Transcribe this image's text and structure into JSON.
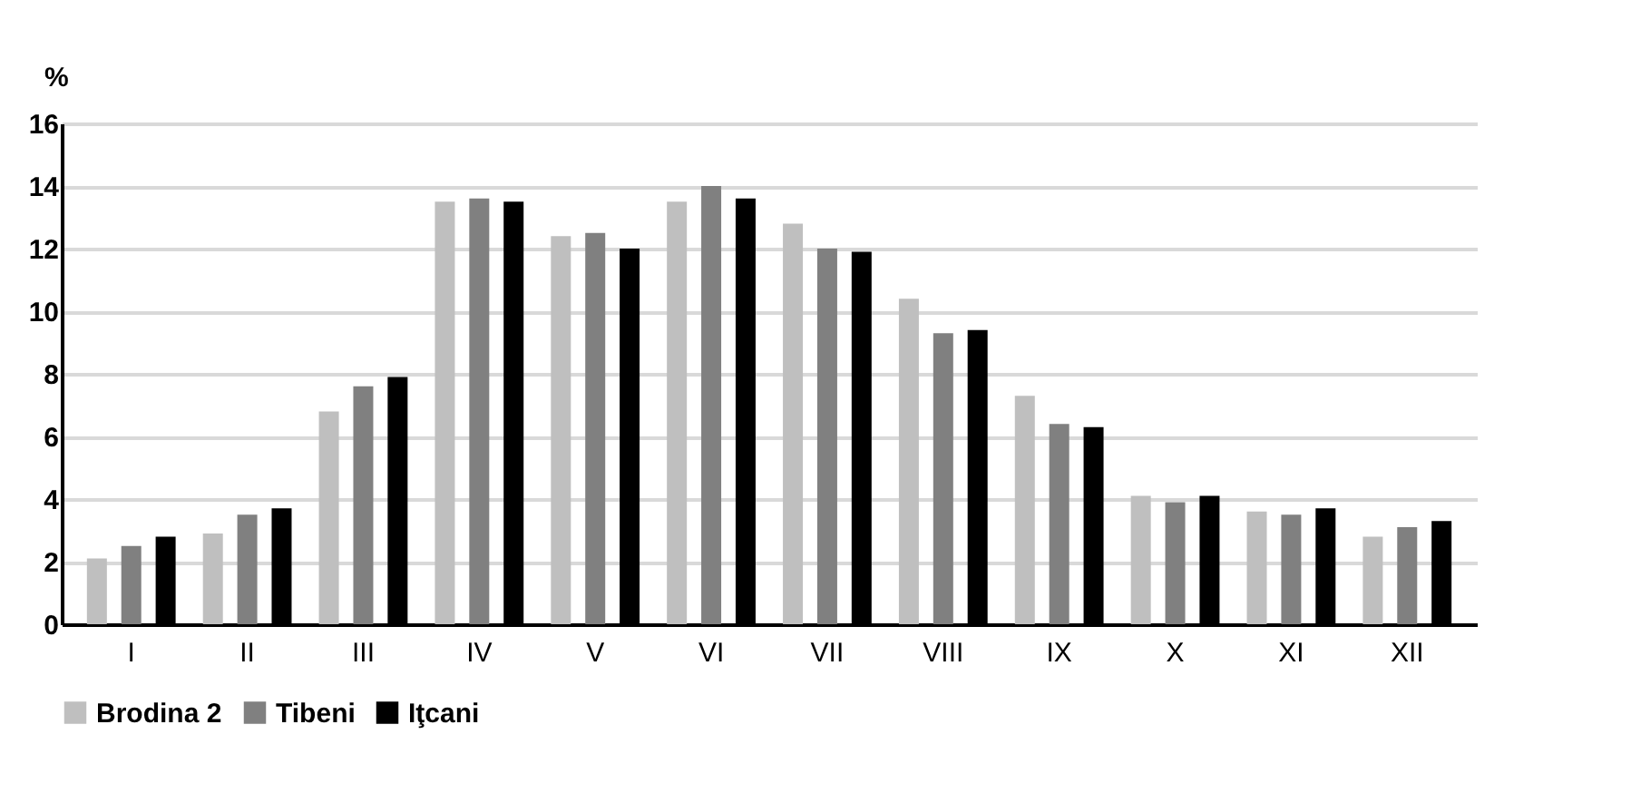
{
  "chart_data": {
    "type": "bar",
    "ylabel": "%",
    "categories": [
      "I",
      "II",
      "III",
      "IV",
      "V",
      "VI",
      "VII",
      "VIII",
      "IX",
      "X",
      "XI",
      "XII"
    ],
    "series": [
      {
        "name": "Brodina 2",
        "color": "#bfbfbf",
        "values": [
          2.1,
          2.9,
          6.8,
          13.5,
          12.4,
          13.5,
          12.8,
          10.4,
          7.3,
          4.1,
          3.6,
          2.8
        ]
      },
      {
        "name": "Tibeni",
        "color": "#808080",
        "values": [
          2.5,
          3.5,
          7.6,
          13.6,
          12.5,
          14.0,
          12.0,
          9.3,
          6.4,
          3.9,
          3.5,
          3.1
        ]
      },
      {
        "name": "Iţcani",
        "color": "#000000",
        "values": [
          2.8,
          3.7,
          7.9,
          13.5,
          12.0,
          13.6,
          11.9,
          9.4,
          6.3,
          4.1,
          3.7,
          3.3
        ]
      }
    ],
    "ylim": [
      0,
      16
    ],
    "yticks": [
      0,
      2,
      4,
      6,
      8,
      10,
      12,
      14,
      16
    ],
    "grid": "y",
    "legend": "bottom"
  }
}
